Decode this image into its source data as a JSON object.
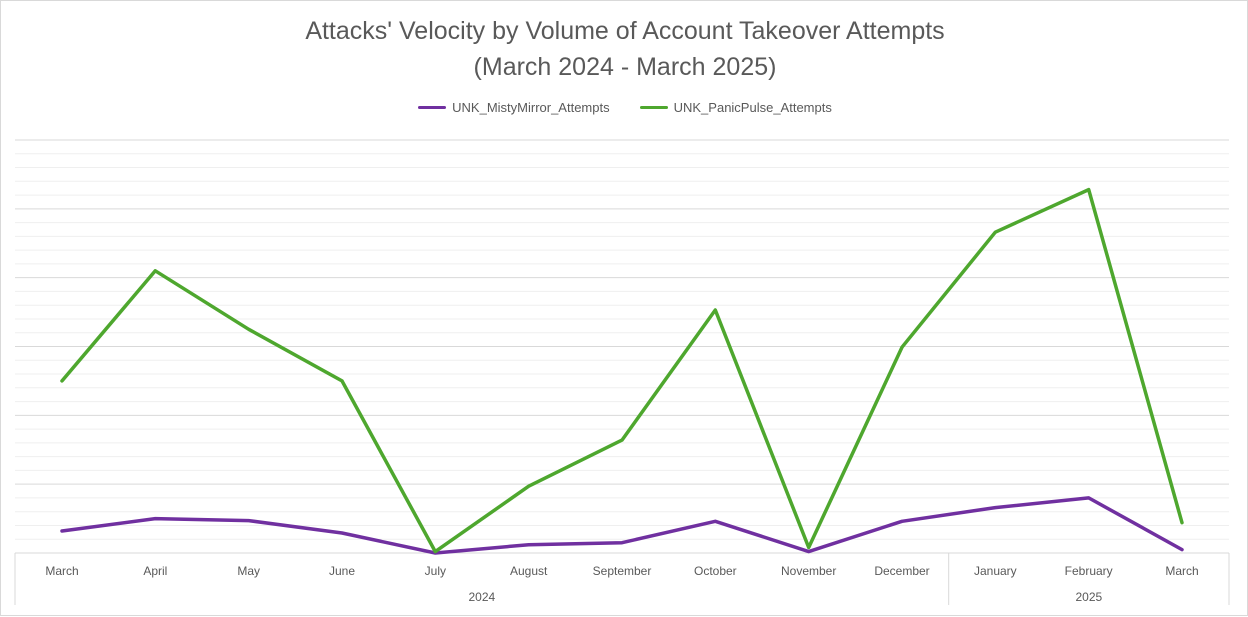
{
  "chart_data": {
    "type": "line",
    "title": "Attacks' Velocity by Volume of Account Takeover Attempts",
    "subtitle": "(March 2024 - March 2025)",
    "categories": [
      "March",
      "April",
      "May",
      "June",
      "July",
      "August",
      "September",
      "October",
      "November",
      "December",
      "January",
      "February",
      "March"
    ],
    "year_groups": [
      {
        "label": "2024",
        "start": 0,
        "end": 9
      },
      {
        "label": "2025",
        "start": 10,
        "end": 12
      }
    ],
    "series": [
      {
        "name": "UNK_MistyMirror_Attempts",
        "color": "#7030a0",
        "values": [
          32,
          50,
          47,
          29,
          0,
          12,
          15,
          46,
          2,
          46,
          66,
          80,
          5
        ]
      },
      {
        "name": "UNK_PanicPulse_Attempts",
        "color": "#4ea72e",
        "values": [
          250,
          410,
          325,
          250,
          2,
          97,
          164,
          353,
          8,
          299,
          466,
          528,
          44
        ]
      }
    ],
    "ylim": [
      0,
      600
    ],
    "grid": true,
    "y_tick_labels_visible": false,
    "xlabel": "",
    "ylabel": "",
    "legend_position": "top"
  }
}
